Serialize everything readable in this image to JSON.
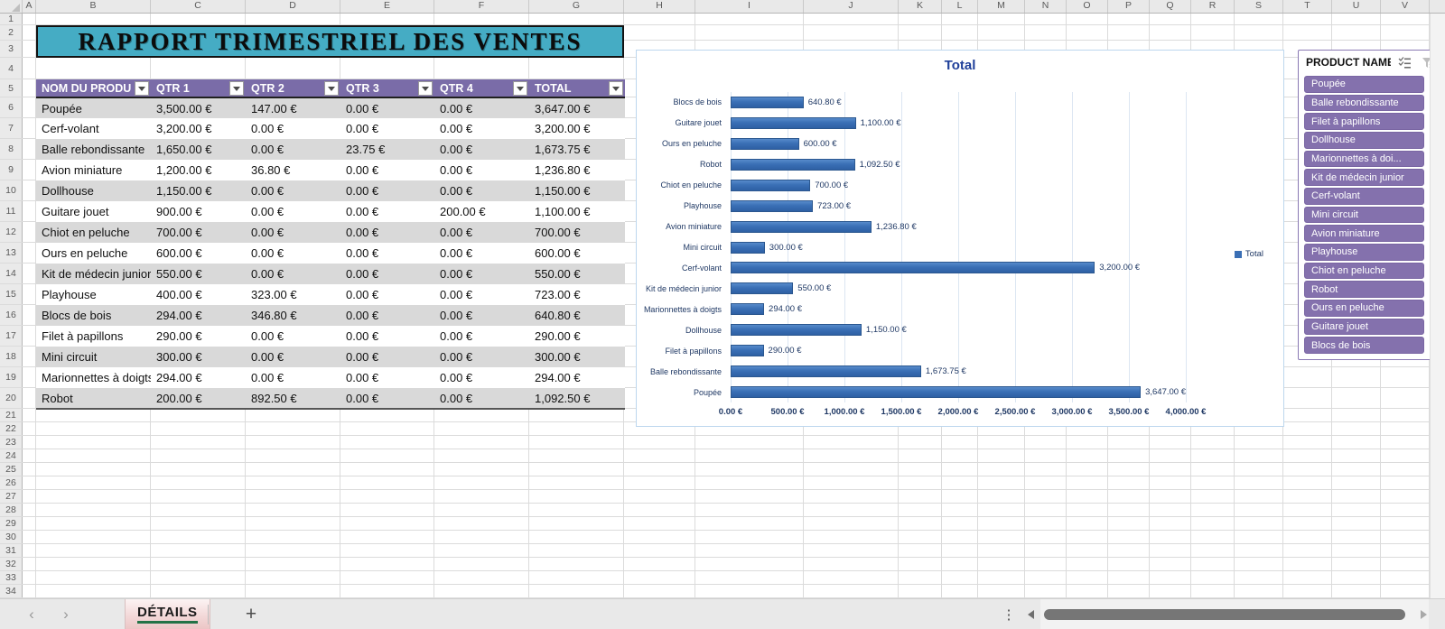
{
  "app": {
    "kind": "spreadsheet",
    "sheet_name": "DÉTAILS"
  },
  "theme": {
    "banner_bg": "#45ACC4",
    "banner_border": "#121212",
    "table_header_bg": "#7A6CA8",
    "table_header_text": "#FFFFFF",
    "band_row": "#D9D9D9",
    "band_alt_row": "#FFFFFF",
    "bar_fill": "#3A6FB5",
    "bar_border": "#2B578F",
    "chart_title_color": "#20409A",
    "chart_label_color": "#1F3864",
    "chart_border": "#BDD7EE",
    "chart_gridline": "#DCE6F2",
    "slicer_item_bg": "#8471AD",
    "slicer_border": "#8A79B4",
    "tab_underline_green": "#217346"
  },
  "grid": {
    "column_letters": [
      "A",
      "B",
      "C",
      "D",
      "E",
      "F",
      "G",
      "H",
      "I",
      "J",
      "K",
      "L",
      "M",
      "N",
      "O",
      "P",
      "Q",
      "R",
      "S",
      "T",
      "U",
      "V"
    ],
    "visible_row_count": 34
  },
  "banner": {
    "title": "RAPPORT TRIMESTRIEL DES VENTES"
  },
  "table": {
    "headers": [
      "NOM DU PRODU",
      "QTR 1",
      "QTR 2",
      "QTR 3",
      "QTR 4",
      "TOTAL"
    ],
    "rows": [
      [
        "Poupée",
        "3,500.00 €",
        "147.00 €",
        "0.00 €",
        "0.00 €",
        "3,647.00 €"
      ],
      [
        "Cerf-volant",
        "3,200.00 €",
        "0.00 €",
        "0.00 €",
        "0.00 €",
        "3,200.00 €"
      ],
      [
        "Balle rebondissante",
        "1,650.00 €",
        "0.00 €",
        "23.75 €",
        "0.00 €",
        "1,673.75 €"
      ],
      [
        "Avion miniature",
        "1,200.00 €",
        "36.80 €",
        "0.00 €",
        "0.00 €",
        "1,236.80 €"
      ],
      [
        "Dollhouse",
        "1,150.00 €",
        "0.00 €",
        "0.00 €",
        "0.00 €",
        "1,150.00 €"
      ],
      [
        "Guitare jouet",
        "900.00 €",
        "0.00 €",
        "0.00 €",
        "200.00 €",
        "1,100.00 €"
      ],
      [
        "Chiot en peluche",
        "700.00 €",
        "0.00 €",
        "0.00 €",
        "0.00 €",
        "700.00 €"
      ],
      [
        "Ours en peluche",
        "600.00 €",
        "0.00 €",
        "0.00 €",
        "0.00 €",
        "600.00 €"
      ],
      [
        "Kit de médecin junior",
        "550.00 €",
        "0.00 €",
        "0.00 €",
        "0.00 €",
        "550.00 €"
      ],
      [
        "Playhouse",
        "400.00 €",
        "323.00 €",
        "0.00 €",
        "0.00 €",
        "723.00 €"
      ],
      [
        "Blocs de bois",
        "294.00 €",
        "346.80 €",
        "0.00 €",
        "0.00 €",
        "640.80 €"
      ],
      [
        "Filet à papillons",
        "290.00 €",
        "0.00 €",
        "0.00 €",
        "0.00 €",
        "290.00 €"
      ],
      [
        "Mini circuit",
        "300.00 €",
        "0.00 €",
        "0.00 €",
        "0.00 €",
        "300.00 €"
      ],
      [
        "Marionnettes à doigts",
        "294.00 €",
        "0.00 €",
        "0.00 €",
        "0.00 €",
        "294.00 €"
      ],
      [
        "Robot",
        "200.00 €",
        "892.50 €",
        "0.00 €",
        "0.00 €",
        "1,092.50 €"
      ]
    ]
  },
  "chart_data": {
    "type": "bar",
    "orientation": "horizontal",
    "title": "Total",
    "legend": [
      "Total"
    ],
    "legend_position": "right",
    "categories_top_to_bottom": [
      "Blocs de bois",
      "Guitare jouet",
      "Ours en peluche",
      "Robot",
      "Chiot en peluche",
      "Playhouse",
      "Avion miniature",
      "Mini circuit",
      "Cerf-volant",
      "Kit de médecin junior",
      "Marionnettes à doigts",
      "Dollhouse",
      "Filet à papillons",
      "Balle rebondissante",
      "Poupée"
    ],
    "values": [
      640.8,
      1100.0,
      600.0,
      1092.5,
      700.0,
      723.0,
      1236.8,
      300.0,
      3200.0,
      550.0,
      294.0,
      1150.0,
      290.0,
      1673.75,
      3647.0
    ],
    "value_labels": [
      "640.80 €",
      "1,100.00 €",
      "600.00 €",
      "1,092.50 €",
      "700.00 €",
      "723.00 €",
      "1,236.80 €",
      "300.00 €",
      "3,200.00 €",
      "550.00 €",
      "294.00 €",
      "1,150.00 €",
      "290.00 €",
      "1,673.75 €",
      "3,647.00 €"
    ],
    "x_ticks": [
      "0.00 €",
      "500.00 €",
      "1,000.00 €",
      "1,500.00 €",
      "2,000.00 €",
      "2,500.00 €",
      "3,000.00 €",
      "3,500.00 €",
      "4,000.00 €"
    ],
    "xlim": [
      0,
      4000
    ],
    "grid": true
  },
  "slicer": {
    "title": "PRODUCT NAME",
    "items": [
      "Poupée",
      "Balle rebondissante",
      "Filet à papillons",
      "Dollhouse",
      "Marionnettes à doi...",
      "Kit de médecin junior",
      "Cerf-volant",
      "Mini circuit",
      "Avion miniature",
      "Playhouse",
      "Chiot en peluche",
      "Robot",
      "Ours en peluche",
      "Guitare jouet",
      "Blocs de bois"
    ]
  },
  "tab_bar": {
    "active_tab": "DÉTAILS",
    "add_button": "+"
  }
}
